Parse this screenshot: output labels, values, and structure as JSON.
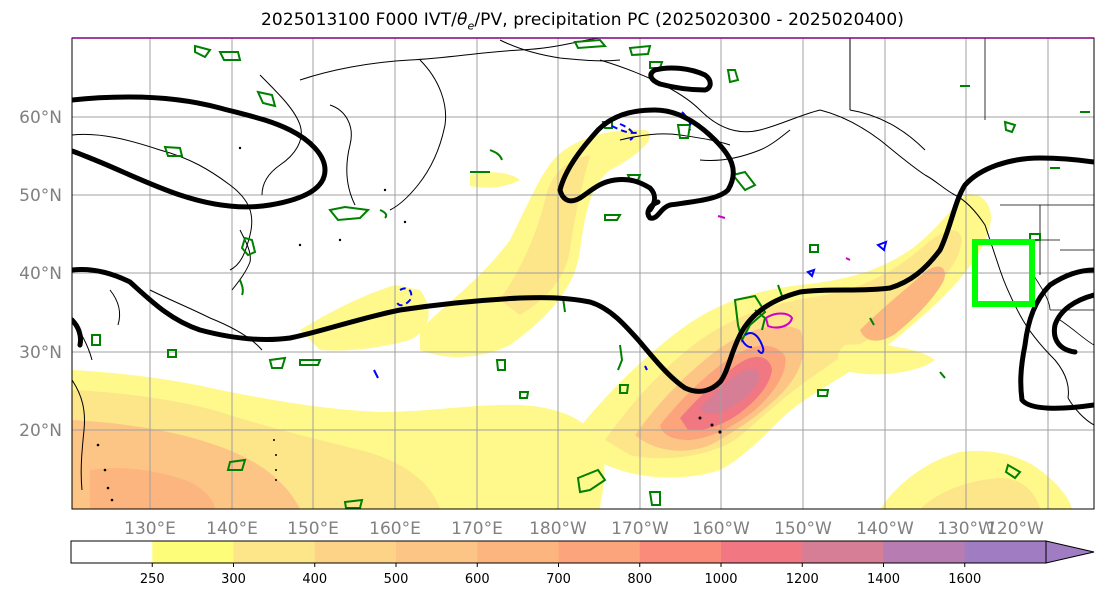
{
  "title": "2025013100 F000 IVT/θe/PV, precipitation PC (2025020300 - 2025020400)",
  "title_parts": {
    "before": "2025013100 F000 IVT/",
    "theta": "θ",
    "sub": "e",
    "after": "/PV, precipitation PC (2025020300 - 2025020400)"
  },
  "lat_labels": [
    "60°N",
    "50°N",
    "40°N",
    "30°N",
    "20°N"
  ],
  "lon_labels": [
    "130°E",
    "140°E",
    "150°E",
    "160°E",
    "170°E",
    "180°W",
    "170°W",
    "160°W",
    "150°W",
    "140°W",
    "130°W",
    "120°W"
  ],
  "colorbar": {
    "levels": [
      "250",
      "300",
      "400",
      "500",
      "600",
      "700",
      "800",
      "1000",
      "1200",
      "1400",
      "1600"
    ],
    "colors": [
      "#ffffff",
      "#fefd7a",
      "#fde58a",
      "#fdd487",
      "#fcc585",
      "#fcb57f",
      "#fca57c",
      "#fa8b7a",
      "#f17783",
      "#d67e95",
      "#b77cb1",
      "#a07cc3"
    ]
  },
  "contour_colors": {
    "theta_e": "#000000",
    "pv": "#008000",
    "ivt_neg": "#0000ff",
    "ivt_pos": "#cc00cc",
    "focus_box": "#00ff00"
  }
}
